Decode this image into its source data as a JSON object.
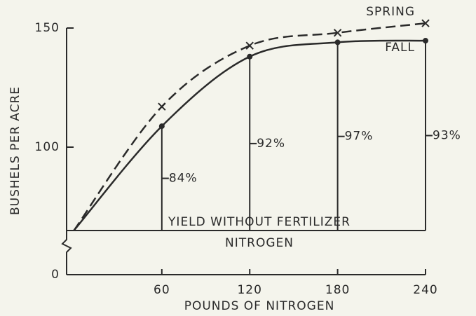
{
  "chart_data": {
    "type": "line",
    "xlabel": "POUNDS OF NITROGEN",
    "ylabel": "BUSHELS PER ACRE",
    "x": [
      0,
      60,
      120,
      180,
      240
    ],
    "series": [
      {
        "name": "SPRING",
        "color": "#2a2a2a",
        "dashed": true,
        "marker": "x",
        "values": [
          65,
          117,
          142.6,
          148,
          152
        ]
      },
      {
        "name": "FALL",
        "color": "#2a2a2a",
        "dashed": false,
        "marker": "dot",
        "values": [
          65,
          108.8,
          138,
          144,
          144.7
        ]
      }
    ],
    "baseline": 65,
    "baseline_label": [
      "YIELD WITHOUT FERTILIZER",
      "NITROGEN"
    ],
    "percent_labels": [
      {
        "x": 60,
        "label": "84%"
      },
      {
        "x": 120,
        "label": "92%"
      },
      {
        "x": 180,
        "label": "97%"
      },
      {
        "x": 240,
        "label": "93%"
      }
    ],
    "xlim": [
      -5,
      240
    ],
    "xticks": [
      60,
      120,
      180,
      240
    ],
    "ylim": [
      0,
      155
    ],
    "y_break": [
      0,
      60
    ],
    "yticks": [
      0,
      100,
      150
    ]
  }
}
